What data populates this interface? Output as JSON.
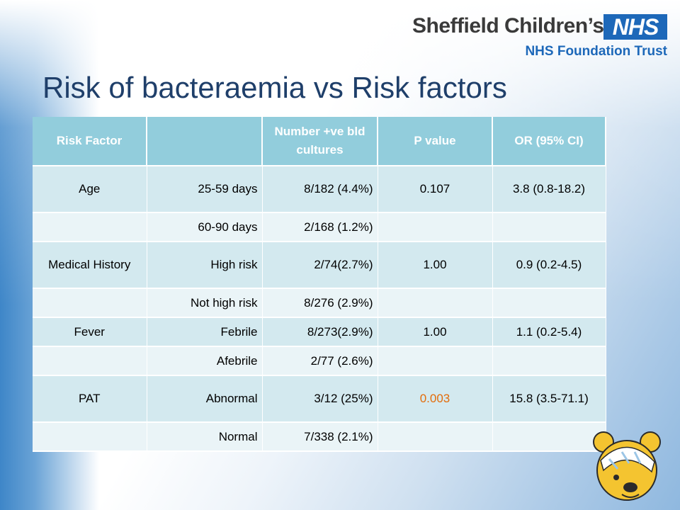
{
  "header": {
    "org_name": "Sheffield Children’s",
    "nhs_mark": "NHS",
    "trust_name": "NHS Foundation Trust"
  },
  "title": "Risk of bacteraemia vs Risk factors",
  "table": {
    "headers": [
      "Risk Factor",
      "",
      "Number +ve bld cultures",
      "P value",
      "OR (95% CI)"
    ],
    "rows": [
      [
        "Age",
        "25-59 days",
        "8/182 (4.4%)",
        "0.107",
        "3.8 (0.8-18.2)"
      ],
      [
        "",
        "60-90 days",
        "2/168 (1.2%)",
        "",
        ""
      ],
      [
        "Medical History",
        "High risk",
        "2/74(2.7%)",
        "1.00",
        "0.9 (0.2-4.5)"
      ],
      [
        "",
        "Not high risk",
        "8/276 (2.9%)",
        "",
        ""
      ],
      [
        "Fever",
        "Febrile",
        "8/273(2.9%)",
        "1.00",
        "1.1 (0.2-5.4)"
      ],
      [
        "",
        "Afebrile",
        "2/77 (2.6%)",
        "",
        ""
      ],
      [
        "PAT",
        "Abnormal",
        "3/12 (25%)",
        "0.003",
        "15.8 (3.5-71.1)"
      ],
      [
        "",
        "Normal",
        "7/338 (2.1%)",
        "",
        ""
      ]
    ]
  },
  "colors": {
    "header_fill": "#92cddc",
    "row_fill_odd": "#d3e9ef",
    "row_fill_even": "#eaf4f7",
    "significant_value": "#e36c0a",
    "nhs_blue": "#1d68b9",
    "title_color": "#1f3f6a"
  },
  "icons": {
    "mascot": "bandaged-bear-icon"
  }
}
